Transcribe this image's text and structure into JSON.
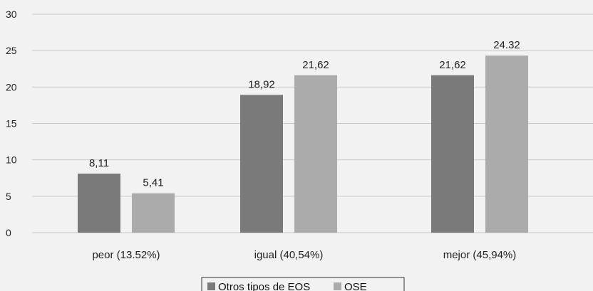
{
  "chart_data": {
    "type": "bar",
    "categories": [
      "peor (13.52%)",
      "igual (40,54%)",
      "mejor (45,94%)"
    ],
    "series": [
      {
        "name": "Otros tipos de EOS",
        "values": [
          8.11,
          18.92,
          21.62
        ],
        "labels": [
          "8,11",
          "18,92",
          "21,62"
        ],
        "color": "#7a7a7a"
      },
      {
        "name": "OSE",
        "values": [
          5.41,
          21.62,
          24.32
        ],
        "labels": [
          "5,41",
          "21,62",
          "24.32"
        ],
        "color": "#ababab"
      }
    ],
    "yticks": [
      "0",
      "5",
      "10",
      "15",
      "20",
      "25",
      "30"
    ],
    "ylim": [
      0,
      30
    ],
    "grid": true,
    "legend_position": "bottom",
    "title": "",
    "xlabel": "",
    "ylabel": ""
  }
}
